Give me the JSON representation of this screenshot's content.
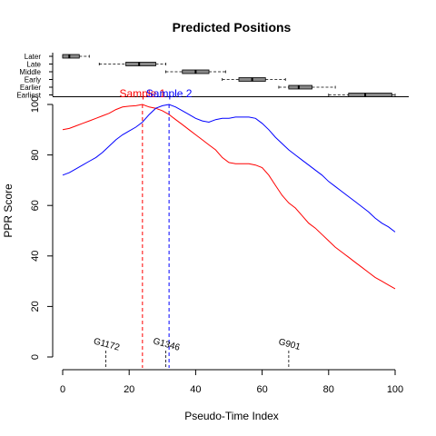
{
  "chart_data": [
    {
      "type": "boxplot",
      "title": "",
      "orientation": "horizontal",
      "categories": [
        "Later",
        "Late",
        "Middle",
        "Early",
        "Earlier",
        "Earliest"
      ],
      "boxes": [
        {
          "category": "Later",
          "whisker_low": 0,
          "q1": 0,
          "median": 2,
          "q3": 5,
          "whisker_high": 8
        },
        {
          "category": "Late",
          "whisker_low": 11,
          "q1": 19,
          "median": 23,
          "q3": 28,
          "whisker_high": 31
        },
        {
          "category": "Middle",
          "whisker_low": 31,
          "q1": 36,
          "median": 40,
          "q3": 44,
          "whisker_high": 49
        },
        {
          "category": "Early",
          "whisker_low": 48,
          "q1": 53,
          "median": 57,
          "q3": 61,
          "whisker_high": 67
        },
        {
          "category": "Earlier",
          "whisker_low": 65,
          "q1": 68,
          "median": 71,
          "q3": 75,
          "whisker_high": 82
        },
        {
          "category": "Earliest",
          "whisker_low": 80,
          "q1": 86,
          "median": 91,
          "q3": 99,
          "whisker_high": 100
        }
      ],
      "xlim": [
        0,
        100
      ],
      "box_color": "#888888"
    },
    {
      "type": "line",
      "title": "Predicted Positions",
      "xlabel": "Pseudo-Time Index",
      "ylabel": "PPR Score",
      "xlim": [
        0,
        100
      ],
      "ylim": [
        0,
        100
      ],
      "xticks": [
        0,
        20,
        40,
        60,
        80,
        100
      ],
      "yticks": [
        0,
        20,
        40,
        60,
        80,
        100
      ],
      "grid": false,
      "series": [
        {
          "name": "Sample 1",
          "color": "#ff0000",
          "x": [
            0,
            2,
            4,
            6,
            8,
            10,
            12,
            14,
            16,
            18,
            20,
            22,
            24,
            26,
            28,
            30,
            32,
            34,
            36,
            38,
            40,
            42,
            44,
            46,
            48,
            50,
            52,
            54,
            56,
            58,
            60,
            62,
            64,
            66,
            68,
            70,
            72,
            74,
            76,
            78,
            80,
            82,
            84,
            86,
            88,
            90,
            92,
            94,
            96,
            98,
            100
          ],
          "y": [
            90,
            90.5,
            91.5,
            92.5,
            93.5,
            94.5,
            95.5,
            96.5,
            98,
            99,
            99.3,
            99.5,
            100,
            99,
            98.5,
            97.5,
            96,
            94,
            92,
            90,
            88,
            86,
            84,
            82,
            79,
            77,
            76.5,
            76.5,
            76.5,
            76,
            75,
            72,
            68,
            64,
            61,
            59,
            56,
            53,
            51,
            48.5,
            46,
            43.5,
            41.5,
            39.5,
            37.5,
            35.5,
            33.5,
            31.5,
            30,
            28.5,
            27
          ]
        },
        {
          "name": "Sample 2",
          "color": "#0000ff",
          "x": [
            0,
            2,
            4,
            6,
            8,
            10,
            12,
            14,
            16,
            18,
            20,
            22,
            24,
            26,
            28,
            30,
            32,
            34,
            36,
            38,
            40,
            42,
            44,
            46,
            48,
            50,
            52,
            54,
            56,
            58,
            60,
            62,
            64,
            66,
            68,
            70,
            72,
            74,
            76,
            78,
            80,
            82,
            84,
            86,
            88,
            90,
            92,
            94,
            96,
            98,
            100
          ],
          "y": [
            72,
            73,
            74.5,
            76,
            77.5,
            79,
            81,
            83.5,
            86,
            88,
            89.5,
            91,
            93,
            96,
            98.5,
            99.5,
            100,
            99,
            97.5,
            96,
            94.5,
            93.5,
            93,
            94,
            94.5,
            94.5,
            95,
            95,
            95,
            94.5,
            92.5,
            90,
            87,
            84.5,
            82,
            80,
            78,
            76,
            74,
            72,
            69.5,
            67.5,
            65.5,
            63.5,
            61.5,
            59.5,
            57.5,
            55,
            53,
            51.5,
            49.5
          ]
        }
      ],
      "vlines": [
        {
          "label": "Sample 1",
          "x": 24,
          "color": "#ff0000",
          "style": "dashed"
        },
        {
          "label": "Sample 2",
          "x": 32,
          "color": "#0000ff",
          "style": "dashed"
        }
      ],
      "annotations": [
        {
          "label": "G1172",
          "x": 13
        },
        {
          "label": "G1346",
          "x": 31
        },
        {
          "label": "G901",
          "x": 68
        }
      ]
    }
  ]
}
